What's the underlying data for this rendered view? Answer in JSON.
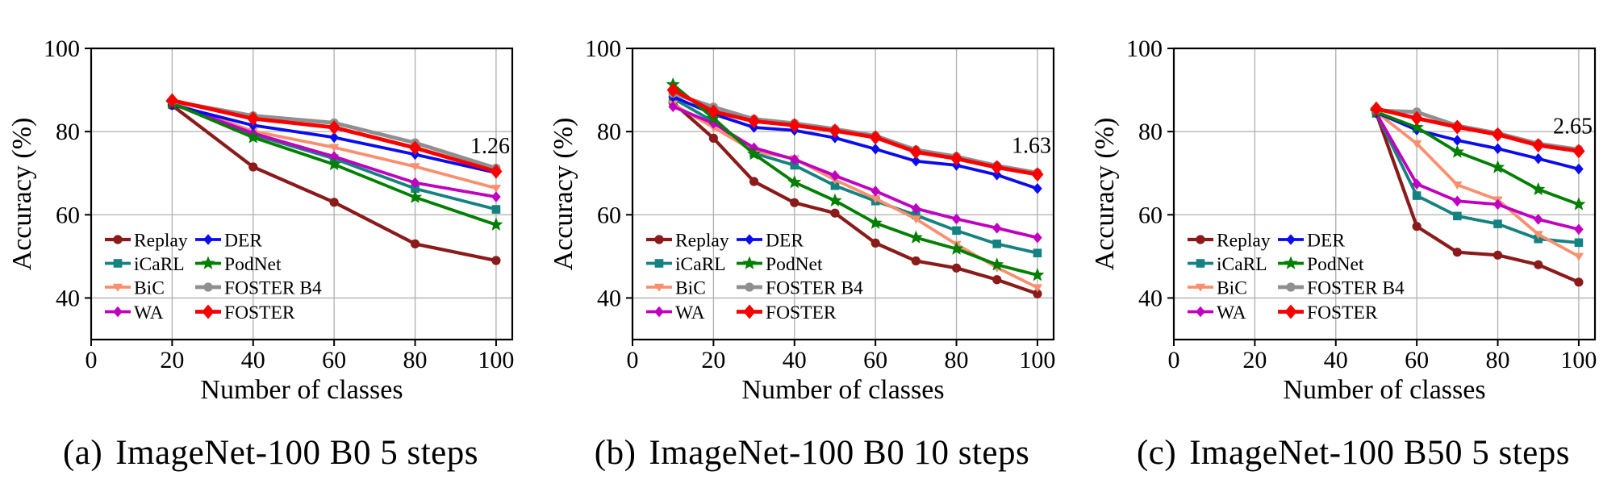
{
  "series_styles": {
    "Replay": {
      "color": "#8B1A1A",
      "marker": "circle",
      "linewidth": 4.2
    },
    "iCaRL": {
      "color": "#148280",
      "marker": "square",
      "linewidth": 3.8
    },
    "BiC": {
      "color": "#FA8F6F",
      "marker": "triangle-down",
      "linewidth": 3.8
    },
    "WA": {
      "color": "#C000C0",
      "marker": "diamond",
      "linewidth": 3.8
    },
    "DER": {
      "color": "#0B0BF0",
      "marker": "diamond",
      "linewidth": 3.8
    },
    "PodNet": {
      "color": "#007F00",
      "marker": "star",
      "linewidth": 3.8
    },
    "FOSTER B4": {
      "color": "#8F8F8F",
      "marker": "circle",
      "linewidth": 4.8
    },
    "FOSTER": {
      "color": "#F80000",
      "marker": "diamond-large",
      "linewidth": 4.8
    }
  },
  "legend": {
    "column1": [
      "Replay",
      "iCaRL",
      "BiC",
      "WA"
    ],
    "column2": [
      "DER",
      "PodNet",
      "FOSTER B4",
      "FOSTER"
    ],
    "position": "lower-left"
  },
  "chart_data": [
    {
      "type": "line",
      "caption_label": "(a)",
      "caption_title": "ImageNet-100 B0 5 steps",
      "xlabel": "Number of classes",
      "ylabel": "Accuracy (%)",
      "xlim": [
        0,
        104
      ],
      "ylim": [
        30,
        100
      ],
      "xticks": [
        0,
        20,
        40,
        60,
        80,
        100
      ],
      "yticks": [
        40,
        60,
        80,
        100
      ],
      "grid": true,
      "annotation": {
        "text": "1.26",
        "y": 76.7,
        "align": "right"
      },
      "x": [
        20,
        40,
        60,
        80,
        100
      ],
      "series": [
        {
          "name": "Replay",
          "values": [
            86.3,
            71.5,
            63.0,
            53.0,
            49.0
          ]
        },
        {
          "name": "iCaRL",
          "values": [
            86.7,
            79.3,
            73.5,
            66.3,
            61.3
          ]
        },
        {
          "name": "BiC",
          "values": [
            87.0,
            80.1,
            76.2,
            71.6,
            66.4
          ]
        },
        {
          "name": "WA",
          "values": [
            86.8,
            79.6,
            74.0,
            67.7,
            64.3
          ]
        },
        {
          "name": "DER",
          "values": [
            86.4,
            81.5,
            78.6,
            74.5,
            70.1
          ]
        },
        {
          "name": "PodNet",
          "values": [
            86.8,
            78.6,
            72.1,
            64.2,
            57.6
          ]
        },
        {
          "name": "FOSTER B4",
          "values": [
            87.3,
            83.8,
            82.1,
            77.3,
            71.2
          ]
        },
        {
          "name": "FOSTER",
          "values": [
            87.5,
            83.1,
            81.0,
            76.1,
            70.4
          ]
        }
      ]
    },
    {
      "type": "line",
      "caption_label": "(b)",
      "caption_title": "ImageNet-100 B0 10 steps",
      "xlabel": "Number of classes",
      "ylabel": "Accuracy (%)",
      "xlim": [
        0,
        104
      ],
      "ylim": [
        30,
        100
      ],
      "xticks": [
        0,
        20,
        40,
        60,
        80,
        100
      ],
      "yticks": [
        40,
        60,
        80,
        100
      ],
      "grid": true,
      "annotation": {
        "text": "1.63",
        "y": 76.8,
        "align": "right"
      },
      "x": [
        10,
        20,
        30,
        40,
        50,
        60,
        70,
        80,
        90,
        100
      ],
      "series": [
        {
          "name": "Replay",
          "values": [
            87.0,
            78.4,
            68.0,
            62.9,
            60.4,
            53.2,
            48.9,
            47.2,
            44.4,
            41.0
          ]
        },
        {
          "name": "iCaRL",
          "values": [
            88.0,
            82.4,
            74.8,
            71.9,
            67.0,
            63.3,
            59.9,
            56.2,
            53.0,
            50.8
          ]
        },
        {
          "name": "BiC",
          "values": [
            86.6,
            81.0,
            75.3,
            73.5,
            68.4,
            63.9,
            59.0,
            52.9,
            47.3,
            42.5
          ]
        },
        {
          "name": "WA",
          "values": [
            86.0,
            82.0,
            76.1,
            73.3,
            69.4,
            65.7,
            61.5,
            59.0,
            56.8,
            54.5
          ]
        },
        {
          "name": "DER",
          "values": [
            88.4,
            84.2,
            81.0,
            80.3,
            78.5,
            75.8,
            72.9,
            71.9,
            69.6,
            66.3
          ]
        },
        {
          "name": "PodNet",
          "values": [
            91.3,
            83.2,
            74.6,
            67.8,
            63.4,
            58.0,
            54.5,
            51.8,
            48.0,
            45.5
          ]
        },
        {
          "name": "FOSTER B4",
          "values": [
            89.2,
            85.9,
            83.0,
            82.0,
            80.6,
            79.0,
            75.6,
            74.0,
            71.8,
            70.1
          ]
        },
        {
          "name": "FOSTER",
          "values": [
            90.0,
            84.8,
            82.5,
            81.5,
            80.2,
            78.6,
            75.1,
            73.5,
            71.4,
            69.7
          ]
        }
      ]
    },
    {
      "type": "line",
      "caption_label": "(c)",
      "caption_title": "ImageNet-100 B50 5 steps",
      "xlabel": "Number of classes",
      "ylabel": "Accuracy (%)",
      "xlim": [
        0,
        104
      ],
      "ylim": [
        30,
        100
      ],
      "xticks": [
        0,
        20,
        40,
        60,
        80,
        100
      ],
      "yticks": [
        40,
        60,
        80,
        100
      ],
      "grid": true,
      "annotation": {
        "text": "2.65",
        "y": 81.5,
        "align": "right"
      },
      "x": [
        50,
        60,
        70,
        80,
        90,
        100
      ],
      "series": [
        {
          "name": "Replay",
          "values": [
            84.4,
            57.2,
            51.0,
            50.3,
            48.0,
            43.8
          ]
        },
        {
          "name": "iCaRL",
          "values": [
            84.4,
            64.6,
            59.7,
            57.8,
            54.2,
            53.3
          ]
        },
        {
          "name": "BiC",
          "values": [
            84.7,
            77.1,
            67.2,
            63.6,
            55.3,
            50.0
          ]
        },
        {
          "name": "WA",
          "values": [
            84.4,
            67.4,
            63.3,
            62.5,
            58.9,
            56.5
          ]
        },
        {
          "name": "DER",
          "values": [
            84.6,
            80.4,
            77.9,
            75.9,
            73.5,
            71.0
          ]
        },
        {
          "name": "PodNet",
          "values": [
            84.7,
            81.0,
            75.1,
            71.4,
            66.1,
            62.5
          ]
        },
        {
          "name": "FOSTER B4",
          "values": [
            85.1,
            84.7,
            81.4,
            79.6,
            77.1,
            75.7
          ]
        },
        {
          "name": "FOSTER",
          "values": [
            85.5,
            83.2,
            81.1,
            79.3,
            76.7,
            75.3
          ]
        }
      ]
    }
  ]
}
